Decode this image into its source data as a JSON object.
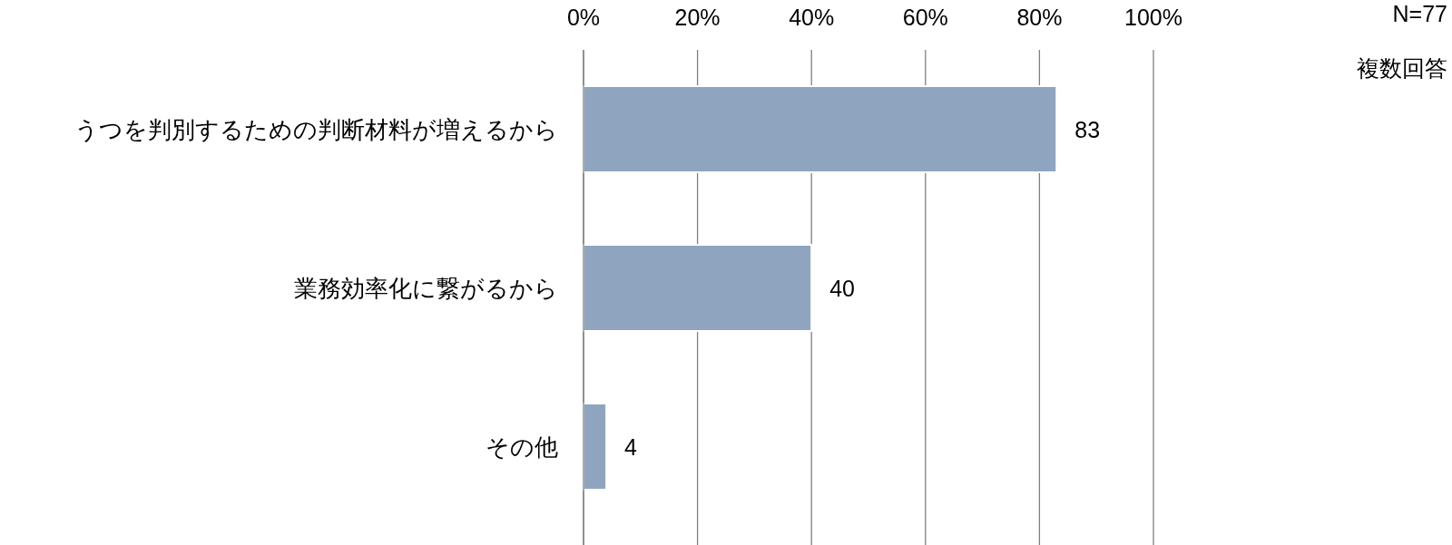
{
  "chart_data": {
    "type": "bar",
    "orientation": "horizontal",
    "categories": [
      "うつを判別するための判断材料が増えるから",
      "業務効率化に繋がるから",
      "その他"
    ],
    "values": [
      83,
      40,
      4
    ],
    "color": "#8fa5bf",
    "xlim": [
      0,
      100
    ],
    "xticks": [
      {
        "value": 0,
        "label": "0%"
      },
      {
        "value": 20,
        "label": "20%"
      },
      {
        "value": 40,
        "label": "40%"
      },
      {
        "value": 60,
        "label": "60%"
      },
      {
        "value": 80,
        "label": "80%"
      },
      {
        "value": 100,
        "label": "100%"
      }
    ],
    "grid": "x",
    "data_labels": true,
    "annotations": [
      "N=77",
      "複数回答"
    ]
  }
}
